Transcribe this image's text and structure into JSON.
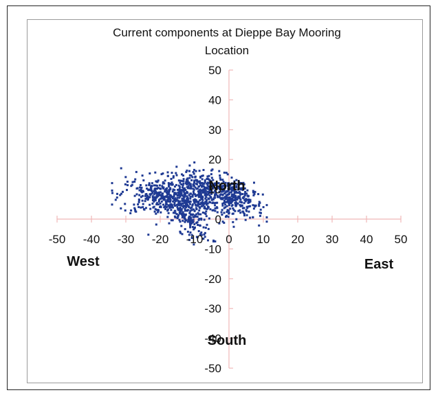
{
  "chart_data": {
    "type": "scatter",
    "title": "Current components at Dieppe Bay Mooring Location",
    "title_lines": [
      "Current components at Dieppe Bay Mooring",
      "Location"
    ],
    "xlim": [
      -50,
      50
    ],
    "ylim": [
      -50,
      50
    ],
    "x_ticks": [
      -50,
      -40,
      -30,
      -20,
      -10,
      0,
      10,
      20,
      30,
      40,
      50
    ],
    "y_ticks": [
      50,
      40,
      30,
      20,
      10,
      0,
      -10,
      -20,
      -30,
      -40,
      -50
    ],
    "direction_labels": {
      "north": "North",
      "south": "South",
      "east": "East",
      "west": "West"
    },
    "axis_color": "#f0b8b8",
    "marker_color": "#1f3a93",
    "clusters": [
      {
        "cx": -7,
        "cy": 9,
        "sx": 7,
        "sy": 3.5,
        "corr": -0.35,
        "n": 520
      },
      {
        "cx": -20,
        "cy": 7,
        "sx": 6,
        "sy": 3.2,
        "corr": -0.2,
        "n": 300
      },
      {
        "cx": -12,
        "cy": 1,
        "sx": 3.5,
        "sy": 4,
        "corr": -0.6,
        "n": 180
      },
      {
        "cx": 3,
        "cy": 6,
        "sx": 3.5,
        "sy": 3,
        "corr": -0.3,
        "n": 160
      }
    ]
  }
}
